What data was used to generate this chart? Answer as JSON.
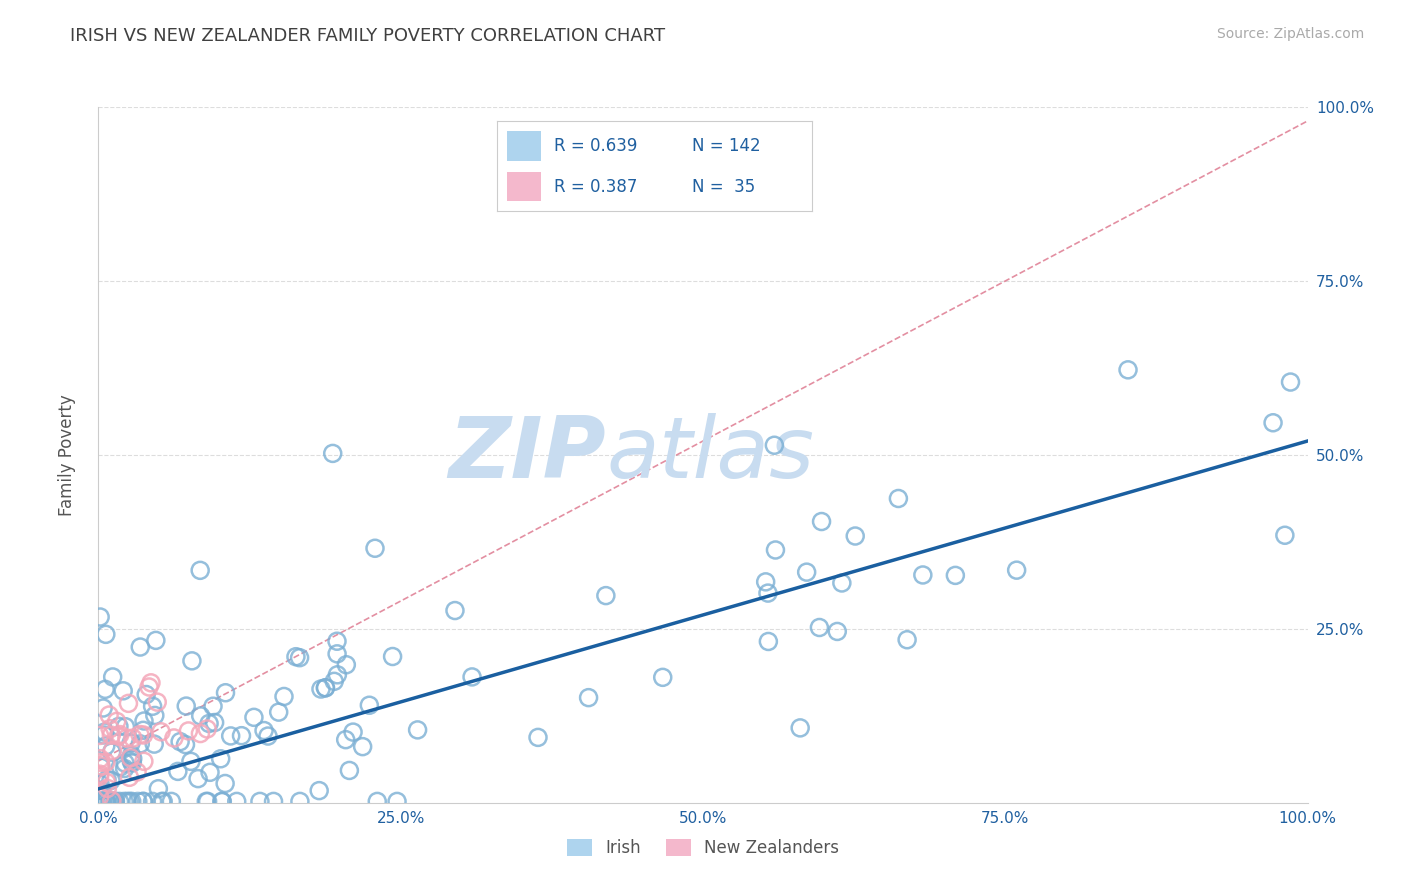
{
  "title": "IRISH VS NEW ZEALANDER FAMILY POVERTY CORRELATION CHART",
  "source": "Source: ZipAtlas.com",
  "ylabel": "Family Poverty",
  "xlim": [
    0.0,
    1.0
  ],
  "ylim": [
    0.0,
    1.0
  ],
  "xtick_labels": [
    "0.0%",
    "25.0%",
    "50.0%",
    "75.0%",
    "100.0%"
  ],
  "xtick_vals": [
    0.0,
    0.25,
    0.5,
    0.75,
    1.0
  ],
  "ytick_labels": [
    "25.0%",
    "50.0%",
    "75.0%",
    "100.0%"
  ],
  "ytick_vals": [
    0.25,
    0.5,
    0.75,
    1.0
  ],
  "irish_color": "#7BAFD4",
  "nz_color": "#F4A7B9",
  "irish_R": 0.639,
  "irish_N": 142,
  "nz_R": 0.387,
  "nz_N": 35,
  "trend_irish_color": "#1A5FA0",
  "trend_nz_color": "#CC3355",
  "diagonal_color": "#BBBBBB",
  "watermark_zip": "ZIP",
  "watermark_atlas": "atlas",
  "watermark_color": "#C8DCF0",
  "legend_labels": [
    "Irish",
    "New Zealanders"
  ],
  "legend_color1": "#AED4EE",
  "legend_color2": "#F4B8CC",
  "title_color": "#404040",
  "axis_tick_color": "#2060A0",
  "title_fontsize": 13,
  "source_fontsize": 10,
  "legend_text_color": "#2060A0",
  "legend_R1": "R = 0.639",
  "legend_N1": "N = 142",
  "legend_R2": "R = 0.387",
  "legend_N2": "N =  35",
  "irish_trend_start_x": 0.0,
  "irish_trend_start_y": 0.02,
  "irish_trend_end_x": 1.0,
  "irish_trend_end_y": 0.52,
  "nz_trend_start_x": 0.0,
  "nz_trend_start_y": 0.06,
  "nz_trend_end_x": 1.0,
  "nz_trend_end_y": 0.98
}
